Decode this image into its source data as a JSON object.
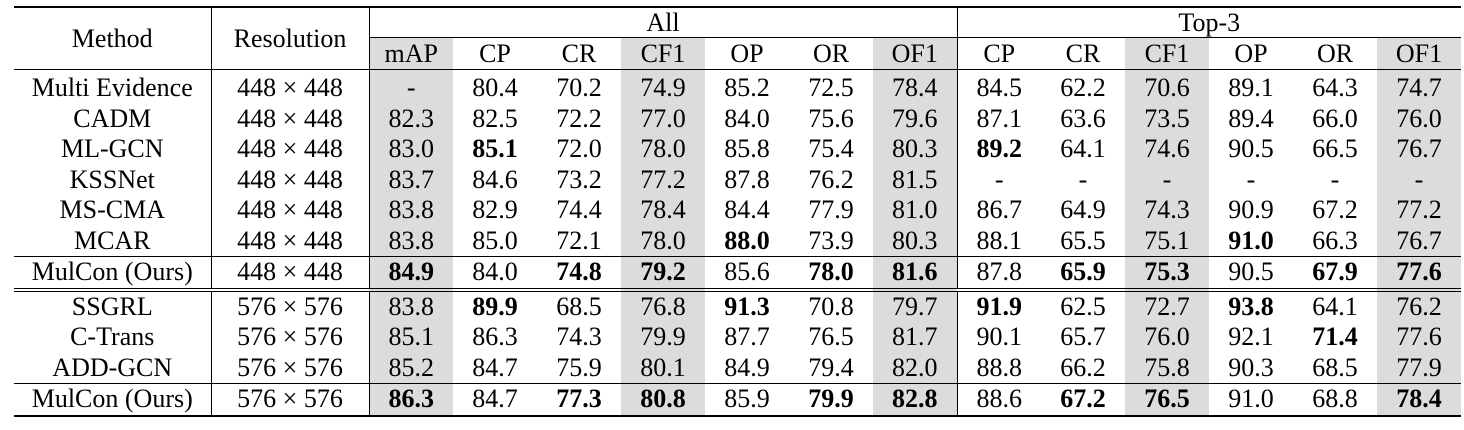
{
  "headers": {
    "method": "Method",
    "resolution": "Resolution",
    "group_all": "All",
    "group_top3": "Top-3",
    "all_cols": [
      "mAP",
      "CP",
      "CR",
      "CF1",
      "OP",
      "OR",
      "OF1"
    ],
    "top3_cols": [
      "CP",
      "CR",
      "CF1",
      "OP",
      "OR",
      "OF1"
    ]
  },
  "shaded_columns": [
    "mAP",
    "CF1",
    "OF1"
  ],
  "blocks": [
    {
      "rows": [
        {
          "method": "Multi Evidence",
          "res": "448 × 448",
          "cells": [
            "-",
            "80.4",
            "70.2",
            "74.9",
            "85.2",
            "72.5",
            "78.4",
            "84.5",
            "62.2",
            "70.6",
            "89.1",
            "64.3",
            "74.7"
          ],
          "bold": []
        },
        {
          "method": "CADM",
          "res": "448 × 448",
          "cells": [
            "82.3",
            "82.5",
            "72.2",
            "77.0",
            "84.0",
            "75.6",
            "79.6",
            "87.1",
            "63.6",
            "73.5",
            "89.4",
            "66.0",
            "76.0"
          ],
          "bold": []
        },
        {
          "method": "ML-GCN",
          "res": "448 × 448",
          "cells": [
            "83.0",
            "85.1",
            "72.0",
            "78.0",
            "85.8",
            "75.4",
            "80.3",
            "89.2",
            "64.1",
            "74.6",
            "90.5",
            "66.5",
            "76.7"
          ],
          "bold": [
            1,
            7
          ]
        },
        {
          "method": "KSSNet",
          "res": "448 × 448",
          "cells": [
            "83.7",
            "84.6",
            "73.2",
            "77.2",
            "87.8",
            "76.2",
            "81.5",
            "-",
            "-",
            "-",
            "-",
            "-",
            "-"
          ],
          "bold": []
        },
        {
          "method": "MS-CMA",
          "res": "448 × 448",
          "cells": [
            "83.8",
            "82.9",
            "74.4",
            "78.4",
            "84.4",
            "77.9",
            "81.0",
            "86.7",
            "64.9",
            "74.3",
            "90.9",
            "67.2",
            "77.2"
          ],
          "bold": []
        },
        {
          "method": "MCAR",
          "res": "448 × 448",
          "cells": [
            "83.8",
            "85.0",
            "72.1",
            "78.0",
            "88.0",
            "73.9",
            "80.3",
            "88.1",
            "65.5",
            "75.1",
            "91.0",
            "66.3",
            "76.7"
          ],
          "bold": [
            4,
            10
          ]
        }
      ],
      "ours": {
        "method": "MulCon (Ours)",
        "res": "448 × 448",
        "cells": [
          "84.9",
          "84.0",
          "74.8",
          "79.2",
          "85.6",
          "78.0",
          "81.6",
          "87.8",
          "65.9",
          "75.3",
          "90.5",
          "67.9",
          "77.6"
        ],
        "bold": [
          0,
          2,
          3,
          5,
          6,
          8,
          9,
          11,
          12
        ]
      }
    },
    {
      "rows": [
        {
          "method": "SSGRL",
          "res": "576 × 576",
          "cells": [
            "83.8",
            "89.9",
            "68.5",
            "76.8",
            "91.3",
            "70.8",
            "79.7",
            "91.9",
            "62.5",
            "72.7",
            "93.8",
            "64.1",
            "76.2"
          ],
          "bold": [
            1,
            4,
            7,
            10
          ]
        },
        {
          "method": "C-Trans",
          "res": "576 × 576",
          "cells": [
            "85.1",
            "86.3",
            "74.3",
            "79.9",
            "87.7",
            "76.5",
            "81.7",
            "90.1",
            "65.7",
            "76.0",
            "92.1",
            "71.4",
            "77.6"
          ],
          "bold": [
            11
          ]
        },
        {
          "method": "ADD-GCN",
          "res": "576 × 576",
          "cells": [
            "85.2",
            "84.7",
            "75.9",
            "80.1",
            "84.9",
            "79.4",
            "82.0",
            "88.8",
            "66.2",
            "75.8",
            "90.3",
            "68.5",
            "77.9"
          ],
          "bold": []
        }
      ],
      "ours": {
        "method": "MulCon (Ours)",
        "res": "576 × 576",
        "cells": [
          "86.3",
          "84.7",
          "77.3",
          "80.8",
          "85.9",
          "79.9",
          "82.8",
          "88.6",
          "67.2",
          "76.5",
          "91.0",
          "68.8",
          "78.4"
        ],
        "bold": [
          0,
          2,
          3,
          5,
          6,
          8,
          9,
          12
        ]
      }
    }
  ]
}
